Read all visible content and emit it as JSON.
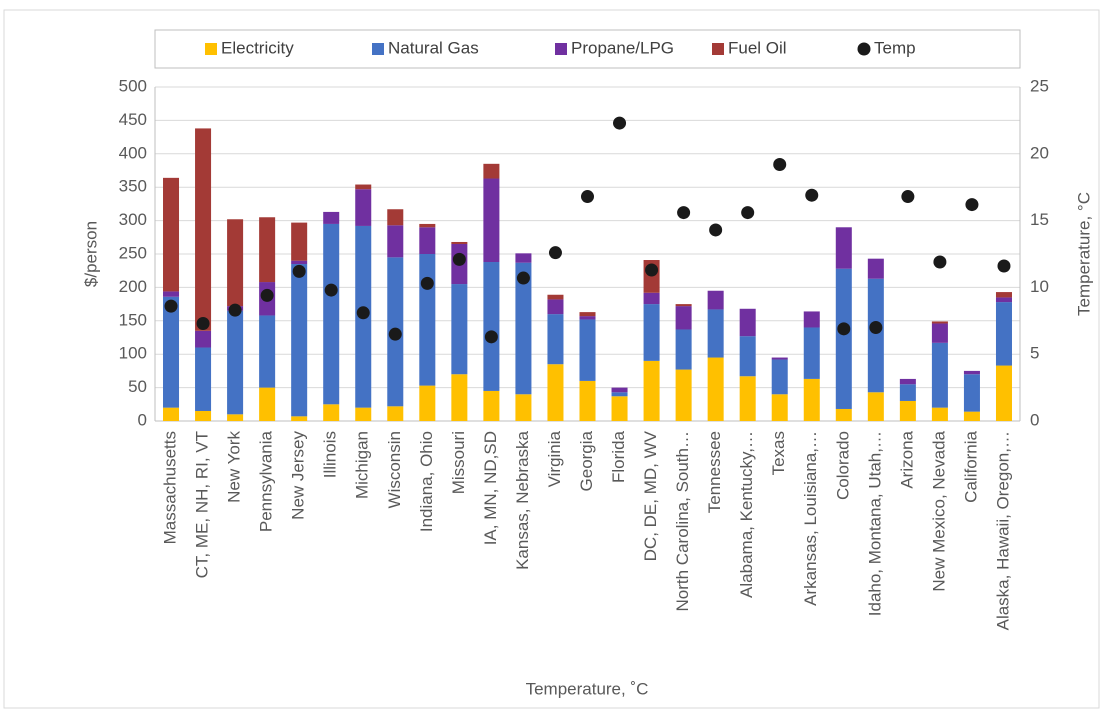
{
  "chart_data": {
    "type": "bar",
    "stacked": true,
    "x_label": "Temperature, ˚C",
    "y_label": "$/person",
    "y2_label": "Temperature, °C",
    "categories": [
      "Massachusetts",
      "CT, ME, NH, RI, VT",
      "New York",
      "Pennsylvania",
      "New Jersey",
      "Illinois",
      "Michigan",
      "Wisconsin",
      "Indiana, Ohio",
      "Missouri",
      "IA, MN, ND,SD",
      "Kansas, Nebraska",
      "Virginia",
      "Georgia",
      "Florida",
      "DC, DE, MD, WV",
      "North Carolina, South…",
      "Tennessee",
      "Alabama, Kentucky,…",
      "Texas",
      "Arkansas, Louisiana,…",
      "Colorado",
      "Idaho, Montana, Utah,…",
      "Arizona",
      "New Mexico, Nevada",
      "California",
      "Alaska, Hawaii, Oregon,…"
    ],
    "series": [
      {
        "name": "Electricity",
        "color": "#ffc000",
        "values": [
          20,
          15,
          10,
          50,
          7,
          25,
          20,
          22,
          53,
          70,
          45,
          40,
          85,
          60,
          37,
          90,
          77,
          95,
          67,
          40,
          63,
          18,
          43,
          30,
          20,
          14,
          83
        ]
      },
      {
        "name": "Natural Gas",
        "color": "#4472c4",
        "values": [
          166,
          95,
          155,
          108,
          228,
          270,
          272,
          223,
          197,
          135,
          193,
          197,
          75,
          92,
          6,
          85,
          60,
          72,
          60,
          52,
          77,
          210,
          170,
          25,
          97,
          56,
          95
        ]
      },
      {
        "name": "Propane/LPG",
        "color": "#7030a0",
        "values": [
          8,
          25,
          7,
          50,
          5,
          18,
          55,
          48,
          40,
          60,
          125,
          14,
          22,
          5,
          7,
          17,
          35,
          28,
          41,
          3,
          24,
          62,
          30,
          8,
          29,
          5,
          7
        ]
      },
      {
        "name": "Fuel Oil",
        "color": "#a33a36",
        "values": [
          170,
          303,
          130,
          97,
          57,
          0,
          7,
          24,
          5,
          3,
          22,
          0,
          7,
          6,
          0,
          49,
          3,
          0,
          0,
          0,
          0,
          0,
          0,
          0,
          3,
          0,
          8
        ]
      },
      {
        "name": "Temp",
        "color": "#1a1a1a",
        "type": "scatter",
        "axis": "y2",
        "values": [
          8.6,
          7.3,
          8.3,
          9.4,
          11.2,
          9.8,
          8.1,
          6.5,
          10.3,
          12.1,
          6.3,
          10.7,
          12.6,
          16.8,
          22.3,
          11.3,
          15.6,
          14.3,
          15.6,
          19.2,
          16.9,
          6.9,
          7.0,
          16.8,
          11.9,
          16.2,
          11.6
        ]
      }
    ],
    "ylim": [
      0,
      500
    ],
    "yticks": [
      0,
      50,
      100,
      150,
      200,
      250,
      300,
      350,
      400,
      450,
      500
    ],
    "y2lim": [
      0,
      25
    ],
    "y2ticks": [
      0,
      5,
      10,
      15,
      20,
      25
    ],
    "grid": true,
    "legend": "top"
  }
}
